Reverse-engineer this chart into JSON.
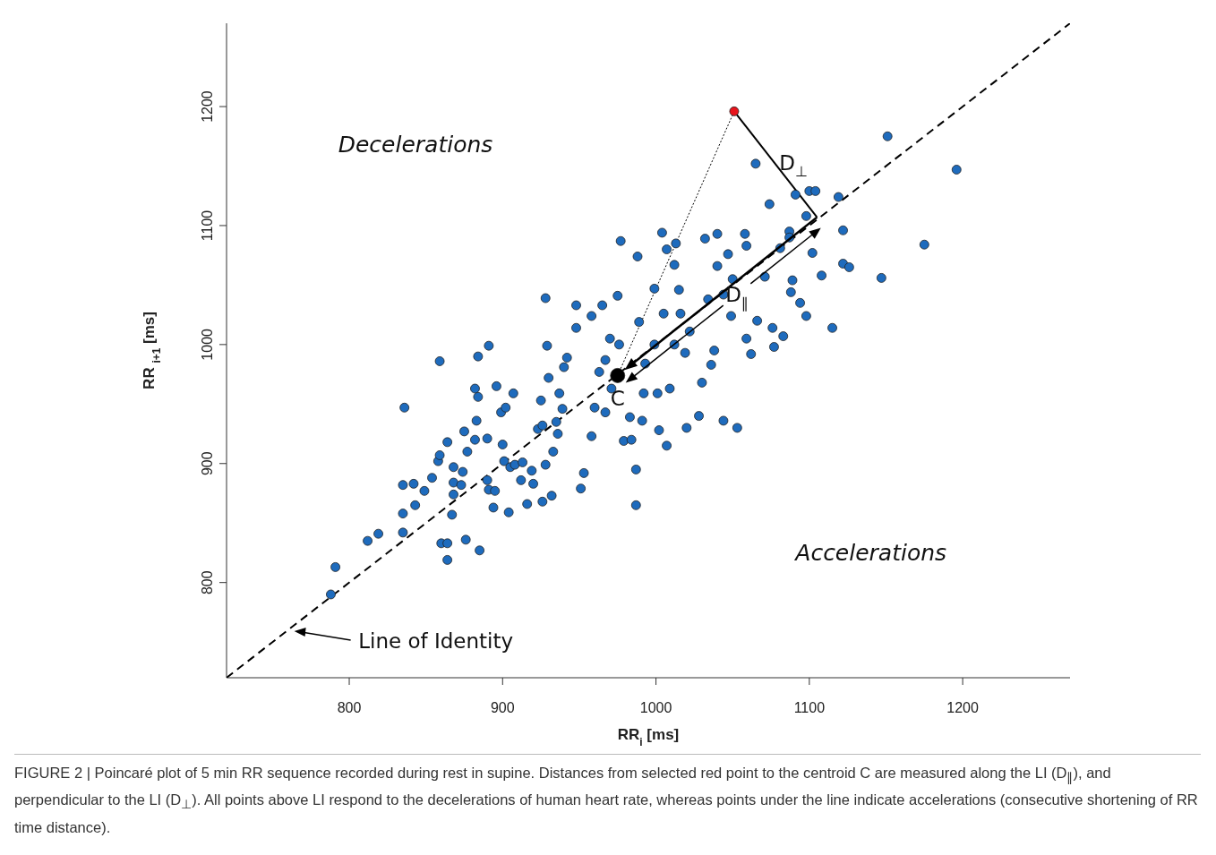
{
  "chart_data": {
    "type": "scatter",
    "xlabel": "RR$_{i}$ [ms]",
    "ylabel": "RR $_{i+1}$ [ms]",
    "xlim": [
      720,
      1270
    ],
    "ylim": [
      720,
      1270
    ],
    "xticks": [
      800,
      900,
      1000,
      1100,
      1200
    ],
    "yticks": [
      800,
      900,
      1000,
      1100,
      1200
    ],
    "series": [
      {
        "color": "#1e6bbd",
        "marker": "circle",
        "x": [
          788,
          791,
          812,
          819,
          835,
          842,
          835,
          835,
          843,
          849,
          854,
          858,
          859,
          864,
          859,
          836,
          860,
          864,
          864,
          867,
          868,
          868,
          868,
          873,
          874,
          875,
          877,
          876,
          882,
          882,
          883,
          884,
          885,
          884,
          891,
          890,
          890,
          891,
          894,
          895,
          896,
          899,
          900,
          901,
          902,
          904,
          905,
          907,
          908,
          912,
          913,
          916,
          919,
          920,
          923,
          926,
          926,
          925,
          928,
          929,
          930,
          932,
          928,
          933,
          935,
          937,
          936,
          939,
          940,
          942,
          948,
          948,
          951,
          953,
          958,
          958,
          963,
          960,
          965,
          967,
          967,
          970,
          971,
          975,
          976,
          977,
          979,
          983,
          984,
          987,
          987,
          988,
          989,
          991,
          992,
          993,
          999,
          999,
          1001,
          1002,
          1004,
          1005,
          1007,
          1007,
          1009,
          1012,
          1012,
          1013,
          1015,
          1016,
          1019,
          1020,
          1022,
          1028,
          1030,
          1032,
          1034,
          1036,
          1038,
          1040,
          1040,
          1044,
          1044,
          1047,
          1049,
          1050,
          1053,
          1058,
          1059,
          1059,
          1062,
          1065,
          1066,
          1071,
          1074,
          1076,
          1077,
          1081,
          1083,
          1087,
          1087,
          1088,
          1089,
          1091,
          1094,
          1098,
          1098,
          1100,
          1102,
          1104,
          1108,
          1115,
          1119,
          1122,
          1122,
          1126,
          1147,
          1151,
          1175,
          1196
        ],
        "values": [
          790,
          813,
          835,
          841,
          882,
          883,
          858,
          842,
          865,
          877,
          888,
          902,
          907,
          918,
          986,
          947,
          833,
          833,
          819,
          857,
          874,
          884,
          897,
          882,
          893,
          927,
          910,
          836,
          920,
          963,
          936,
          956,
          827,
          990,
          999,
          921,
          886,
          878,
          863,
          877,
          965,
          943,
          916,
          902,
          947,
          859,
          897,
          959,
          899,
          886,
          901,
          866,
          894,
          883,
          929,
          932,
          868,
          953,
          899,
          999,
          972,
          873,
          1039,
          910,
          935,
          959,
          925,
          946,
          981,
          989,
          1033,
          1014,
          879,
          892,
          1024,
          923,
          977,
          947,
          1033,
          943,
          987,
          1005,
          963,
          1041,
          1000,
          1087,
          919,
          939,
          920,
          895,
          865,
          1074,
          1019,
          936,
          959,
          984,
          1047,
          1000,
          959,
          928,
          1094,
          1026,
          1080,
          915,
          963,
          1067,
          1000,
          1085,
          1046,
          1026,
          993,
          930,
          1011,
          940,
          968,
          1089,
          1038,
          983,
          995,
          1066,
          1093,
          936,
          1042,
          1076,
          1024,
          1055,
          930,
          1093,
          1083,
          1005,
          992,
          1152,
          1020,
          1057,
          1118,
          1014,
          998,
          1081,
          1007,
          1095,
          1090,
          1044,
          1054,
          1126,
          1035,
          1108,
          1024,
          1129,
          1077,
          1129,
          1058,
          1014,
          1124,
          1096,
          1068,
          1065,
          1056,
          1175,
          1084,
          1147
        ]
      },
      {
        "color": "#e8141c",
        "marker": "circle",
        "x": [
          1051
        ],
        "values": [
          1196
        ]
      },
      {
        "type": "bubble",
        "color": "#000000",
        "marker": "circle",
        "x": [
          975
        ],
        "values": [
          974
        ],
        "sizes": [
          1
        ]
      },
      {
        "type": "line",
        "color": "#000000",
        "marker": "none",
        "line_style": "dashed",
        "x": [
          720,
          1270
        ],
        "values": [
          720,
          1270
        ]
      },
      {
        "type": "line",
        "color": "#000000",
        "marker": "none",
        "line_style": "dotted",
        "x": [
          1051,
          975
        ],
        "values": [
          1196,
          974
        ]
      },
      {
        "type": "line",
        "color": "#000000",
        "marker": "none",
        "line_style": "solid",
        "x": [
          1051,
          1105
        ],
        "values": [
          1196,
          1107
        ]
      }
    ],
    "annotations": [
      "Decelerations",
      "Accelerations",
      "D$_{⊥}$",
      "D$_{∥}$",
      {
        "text": "C",
        "x": 975,
        "y": 974
      },
      "Line of Identity",
      "FIGURE 2 | Poincaré plot of 5 min RR sequence recorded during rest in supine. Distances from selected red point to the centroid C are measured along the LI (D$_{∥}$), and perpendicular to the LI (D$_{⊥}$). All points above LI respond to the decelerations of human heart rate, whereas points under the line indicate accelerations (consecutive shortening of RR time distance)."
    ]
  }
}
